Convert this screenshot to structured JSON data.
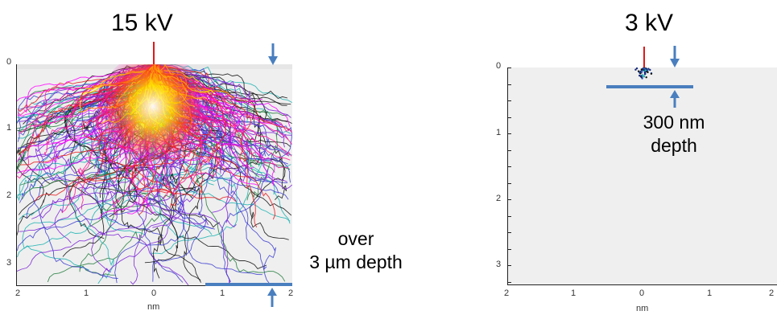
{
  "left_panel": {
    "title": "15 kV",
    "y_ticks": [
      "0",
      "1",
      "2",
      "3"
    ],
    "x_ticks": [
      "2",
      "1",
      "0",
      "1",
      "2"
    ],
    "x_label": "nm",
    "annotation_lines": [
      "over",
      "3 µm depth"
    ]
  },
  "right_panel": {
    "title": "3 kV",
    "y_ticks": [
      "0",
      "1",
      "2",
      "3"
    ],
    "x_ticks": [
      "2",
      "1",
      "0",
      "1",
      "2"
    ],
    "x_label": "nm",
    "annotation_lines": [
      "300 nm",
      "depth"
    ]
  },
  "colors": {
    "plot_background": "#efefef",
    "beam": "#e01818",
    "depth_marker": "#4a7fbf",
    "trajectory_palette": [
      "#ff00ff",
      "#ff1493",
      "#e8191c",
      "#7a1fd6",
      "#3a3acf",
      "#1f7a3a",
      "#18b0b0",
      "#111111",
      "#ff8c00",
      "#ffe600"
    ]
  }
}
